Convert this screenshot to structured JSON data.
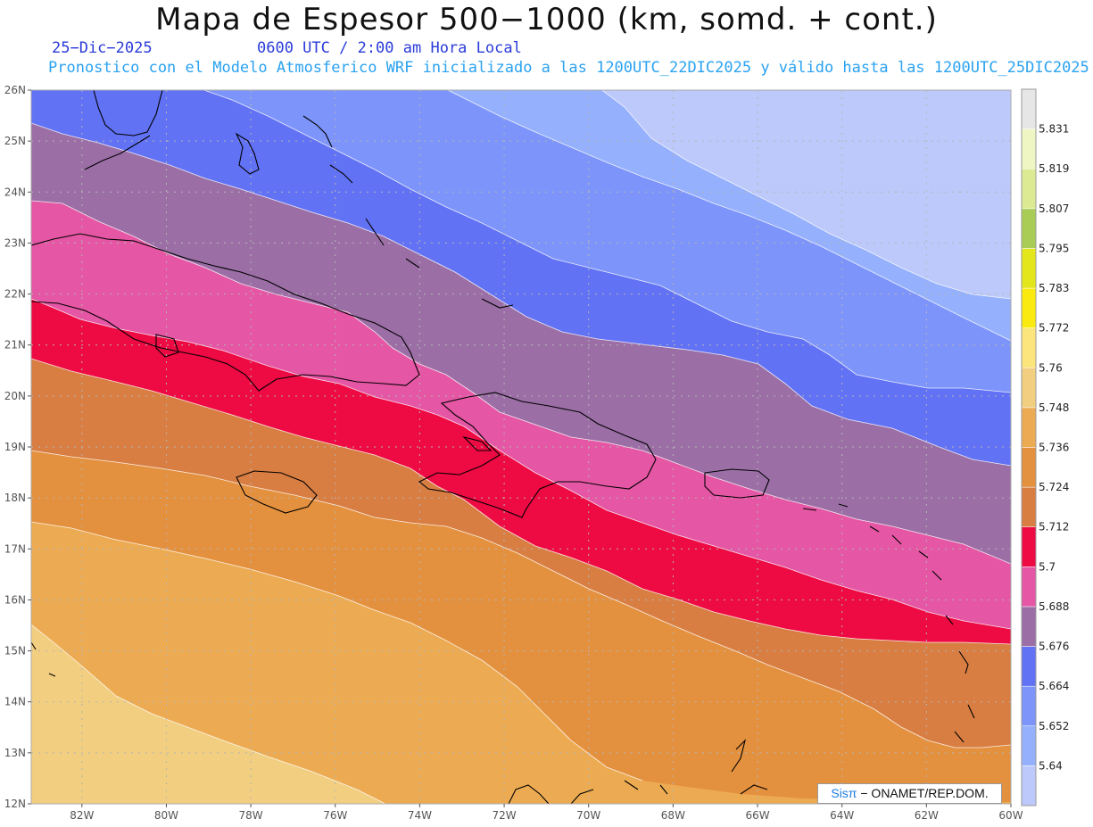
{
  "header": {
    "title": "Mapa de Espesor 500−1000 (km, somd. + cont.)",
    "date": "25−Dic−2025",
    "time": "0600 UTC / 2:00 am Hora Local",
    "model_line": "Pronostico con el Modelo Atmosferico WRF inicializado a las 1200UTC_22DIC2025 y válido hasta las  1200UTC_25DIC2025"
  },
  "map": {
    "lat_ticks": [
      "26N",
      "25N",
      "24N",
      "23N",
      "22N",
      "21N",
      "20N",
      "19N",
      "18N",
      "17N",
      "16N",
      "15N",
      "14N",
      "13N",
      "12N"
    ],
    "lon_ticks": [
      "82W",
      "80W",
      "78W",
      "76W",
      "74W",
      "72W",
      "70W",
      "68W",
      "66W",
      "64W",
      "62W",
      "60W"
    ],
    "lat_range": [
      12,
      26
    ],
    "lon_range": [
      -83.2,
      -60
    ]
  },
  "colorbar": {
    "levels": [
      "5.64",
      "5.652",
      "5.664",
      "5.676",
      "5.688",
      "5.7",
      "5.712",
      "5.724",
      "5.736",
      "5.748",
      "5.76",
      "5.772",
      "5.783",
      "5.795",
      "5.807",
      "5.819",
      "5.831"
    ],
    "colors": [
      "#bdc9fb",
      "#95b0fc",
      "#7d95fa",
      "#6272f4",
      "#9b6fa6",
      "#e556a4",
      "#ee0a43",
      "#d87e43",
      "#e4913f",
      "#ecab52",
      "#f1ce80",
      "#fbe57c",
      "#faea10",
      "#e2e61b",
      "#a9cc56",
      "#dceb93",
      "#eff6c4",
      "#e6e6e6"
    ]
  },
  "credit": {
    "brand": "Sisπ",
    "org": "− ONAMET/REP.DOM."
  }
}
